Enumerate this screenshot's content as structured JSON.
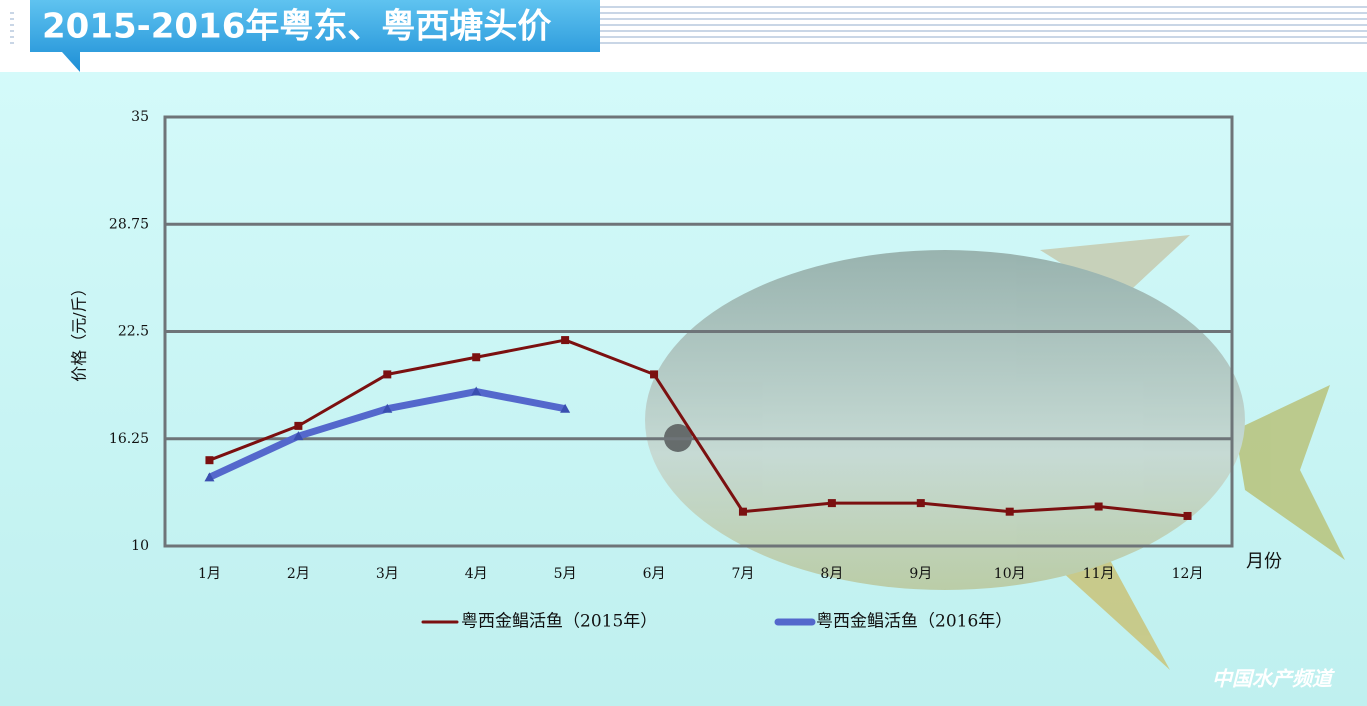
{
  "chart_data": {
    "type": "line",
    "title": "2015-2016年粤东、粤西塘头价",
    "y_label": "价格（元/斤）",
    "x_label": "月份",
    "watermark": "中国水产频道",
    "categories": [
      "1月",
      "2月",
      "3月",
      "4月",
      "5月",
      "6月",
      "7月",
      "8月",
      "9月",
      "10月",
      "11月",
      "12月"
    ],
    "series": [
      {
        "name": "粤西金鲳活鱼（2015年）",
        "color": "#7b1010",
        "values": [
          15,
          17,
          20,
          21,
          22,
          20,
          12,
          12.5,
          12.5,
          12,
          12.3,
          11.75
        ]
      },
      {
        "name": "粤西金鲳活鱼（2016年）",
        "color": "#5468cc",
        "values": [
          14,
          16.4,
          18,
          19,
          18,
          null,
          null,
          null,
          null,
          null,
          null,
          null
        ]
      }
    ],
    "ylim": [
      10,
      35
    ],
    "yticks": [
      10,
      16.25,
      22.5,
      28.75,
      35
    ],
    "grid": true,
    "legend": "bottom"
  }
}
